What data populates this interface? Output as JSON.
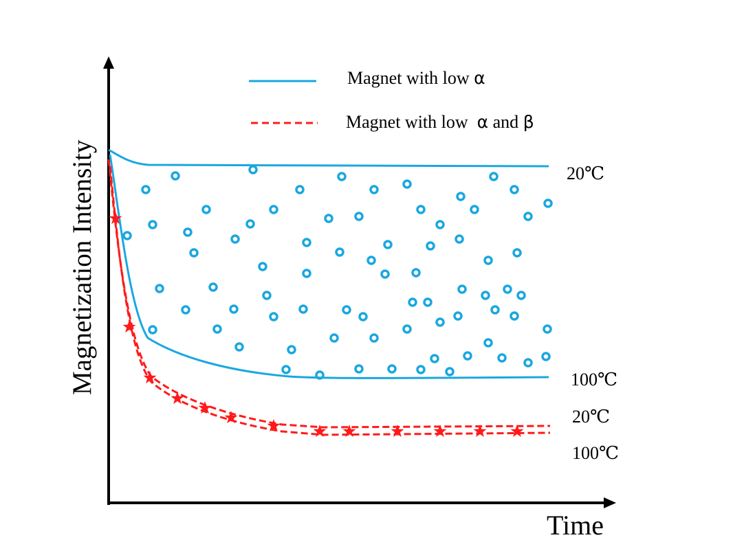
{
  "colors": {
    "low_alpha": "#1aa7e0",
    "low_alpha_beta": "#ff1a1a",
    "axis": "#000000"
  },
  "axes": {
    "ylabel": "Magnetization Intensity",
    "xlabel": "Time"
  },
  "legend": [
    {
      "label": "Magnet with low ",
      "symbol": "α",
      "style": "solid",
      "color": "#1aa7e0"
    },
    {
      "label": "Magnet with low  ",
      "symbol": "α",
      "suffix": " and ",
      "symbol2": "β",
      "style": "dashed with stars",
      "color": "#ff1a1a"
    }
  ],
  "curve_labels": {
    "blue_20": "20℃",
    "blue_100": "100℃",
    "red_20": "20℃",
    "red_100": "100℃"
  }
}
